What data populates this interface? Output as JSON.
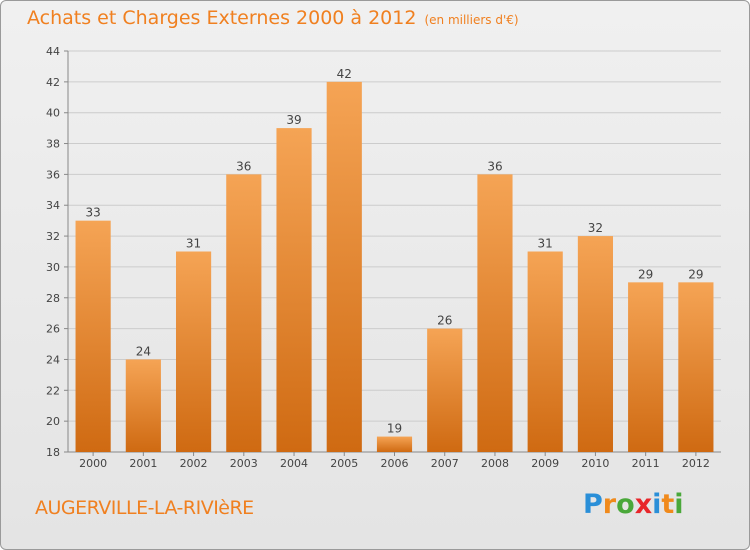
{
  "title": "Achats et Charges Externes 2000 à 2012",
  "unit": "(en milliers d'€)",
  "town": "AUGERVILLE-LA-RIVIèRE",
  "brand": {
    "letters": [
      "P",
      "r",
      "o",
      "x",
      "i",
      "t",
      "i"
    ],
    "colors": [
      "#2a8fd8",
      "#f08a1c",
      "#4aa83a",
      "#e8262a",
      "#2a8fd8",
      "#f08a1c",
      "#4aa83a"
    ]
  },
  "colors": {
    "accent": "#f08020",
    "bar_top": "#f5a455",
    "bar_bottom": "#cf6a12",
    "grid": "#cccccc"
  },
  "chart_data": {
    "type": "bar",
    "categories": [
      "2000",
      "2001",
      "2002",
      "2003",
      "2004",
      "2005",
      "2006",
      "2007",
      "2008",
      "2009",
      "2010",
      "2011",
      "2012"
    ],
    "values": [
      33,
      24,
      31,
      36,
      39,
      42,
      19,
      26,
      36,
      31,
      32,
      29,
      29
    ],
    "title": "Achats et Charges Externes 2000 à 2012",
    "ylim": [
      18,
      44
    ],
    "yticks": [
      18,
      20,
      22,
      24,
      26,
      28,
      30,
      32,
      34,
      36,
      38,
      40,
      42,
      44
    ],
    "grid": true
  }
}
